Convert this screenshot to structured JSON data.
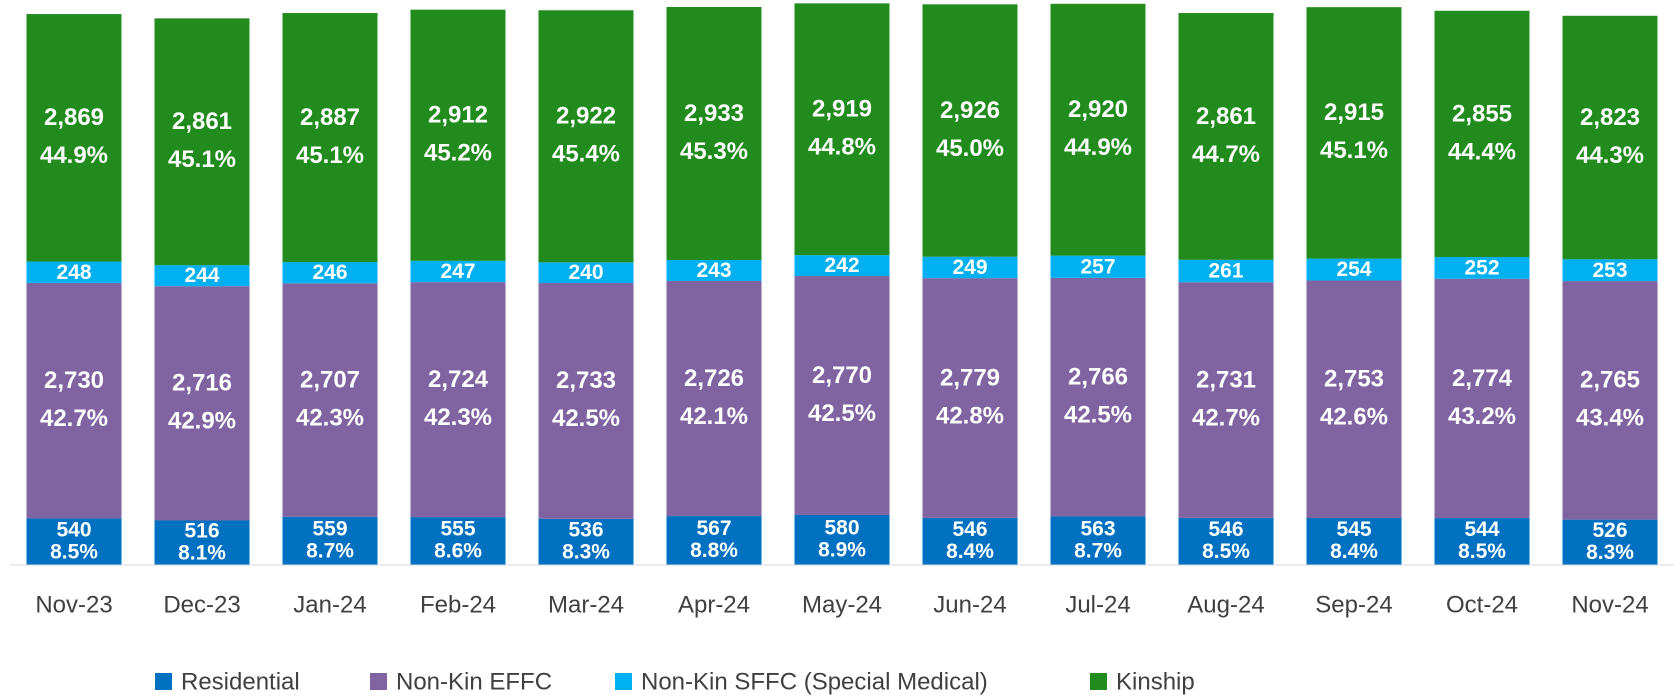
{
  "chart_data": {
    "type": "stacked-bar",
    "categories": [
      "Nov-23",
      "Dec-23",
      "Jan-24",
      "Feb-24",
      "Mar-24",
      "Apr-24",
      "May-24",
      "Jun-24",
      "Jul-24",
      "Aug-24",
      "Sep-24",
      "Oct-24",
      "Nov-24"
    ],
    "ylim": [
      0,
      6550
    ],
    "series": [
      {
        "name": "Residential",
        "color": "#0070c0",
        "values": [
          540,
          516,
          559,
          555,
          536,
          567,
          580,
          546,
          563,
          546,
          545,
          544,
          526
        ],
        "value_labels": [
          "540",
          "516",
          "559",
          "555",
          "536",
          "567",
          "580",
          "546",
          "563",
          "546",
          "545",
          "544",
          "526"
        ],
        "percent_labels": [
          "8.5%",
          "8.1%",
          "8.7%",
          "8.6%",
          "8.3%",
          "8.8%",
          "8.9%",
          "8.4%",
          "8.7%",
          "8.5%",
          "8.4%",
          "8.5%",
          "8.3%"
        ]
      },
      {
        "name": "Non-Kin EFFC",
        "color": "#8064a2",
        "values": [
          2730,
          2716,
          2707,
          2724,
          2733,
          2726,
          2770,
          2779,
          2766,
          2731,
          2753,
          2774,
          2765
        ],
        "value_labels": [
          "2,730",
          "2,716",
          "2,707",
          "2,724",
          "2,733",
          "2,726",
          "2,770",
          "2,779",
          "2,766",
          "2,731",
          "2,753",
          "2,774",
          "2,765"
        ],
        "percent_labels": [
          "42.7%",
          "42.9%",
          "42.3%",
          "42.3%",
          "42.5%",
          "42.1%",
          "42.5%",
          "42.8%",
          "42.5%",
          "42.7%",
          "42.6%",
          "43.2%",
          "43.4%"
        ]
      },
      {
        "name": "Non-Kin SFFC (Special Medical)",
        "color": "#00b0f0",
        "values": [
          248,
          244,
          246,
          247,
          240,
          243,
          242,
          249,
          257,
          261,
          254,
          252,
          253
        ],
        "value_labels": [
          "248",
          "244",
          "246",
          "247",
          "240",
          "243",
          "242",
          "249",
          "257",
          "261",
          "254",
          "252",
          "253"
        ]
      },
      {
        "name": "Kinship",
        "color": "#228b1e",
        "values": [
          2869,
          2861,
          2887,
          2912,
          2922,
          2933,
          2919,
          2926,
          2920,
          2861,
          2915,
          2855,
          2823
        ],
        "value_labels": [
          "2,869",
          "2,861",
          "2,887",
          "2,912",
          "2,922",
          "2,933",
          "2,919",
          "2,926",
          "2,920",
          "2,861",
          "2,915",
          "2,855",
          "2,823"
        ],
        "percent_labels": [
          "44.9%",
          "45.1%",
          "45.1%",
          "45.2%",
          "45.4%",
          "45.3%",
          "44.8%",
          "45.0%",
          "44.9%",
          "44.7%",
          "45.1%",
          "44.4%",
          "44.3%"
        ]
      }
    ]
  }
}
